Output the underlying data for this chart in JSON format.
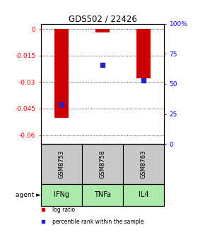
{
  "title": "GDS502 / 22426",
  "samples": [
    "GSM8753",
    "GSM8758",
    "GSM8763"
  ],
  "agents": [
    "IFNg",
    "TNFa",
    "IL4"
  ],
  "log_ratios": [
    -0.05,
    -0.002,
    -0.028
  ],
  "percentile_ranks": [
    0.33,
    0.66,
    0.53
  ],
  "ylim_left": [
    -0.065,
    0.003
  ],
  "left_ticks": [
    0,
    -0.015,
    -0.03,
    -0.045,
    -0.06
  ],
  "right_ticks": [
    0,
    25,
    50,
    75,
    100
  ],
  "right_tick_labels": [
    "0",
    "25",
    "50",
    "75",
    "100%"
  ],
  "bar_color": "#cc0000",
  "dot_color": "#2222cc",
  "sample_bg_color": "#c8c8c8",
  "agent_bg_color": "#aaeaaa",
  "bar_width": 0.35,
  "dot_size": 18,
  "legend_items": [
    "log ratio",
    "percentile rank within the sample"
  ],
  "legend_colors": [
    "#cc0000",
    "#2222cc"
  ]
}
